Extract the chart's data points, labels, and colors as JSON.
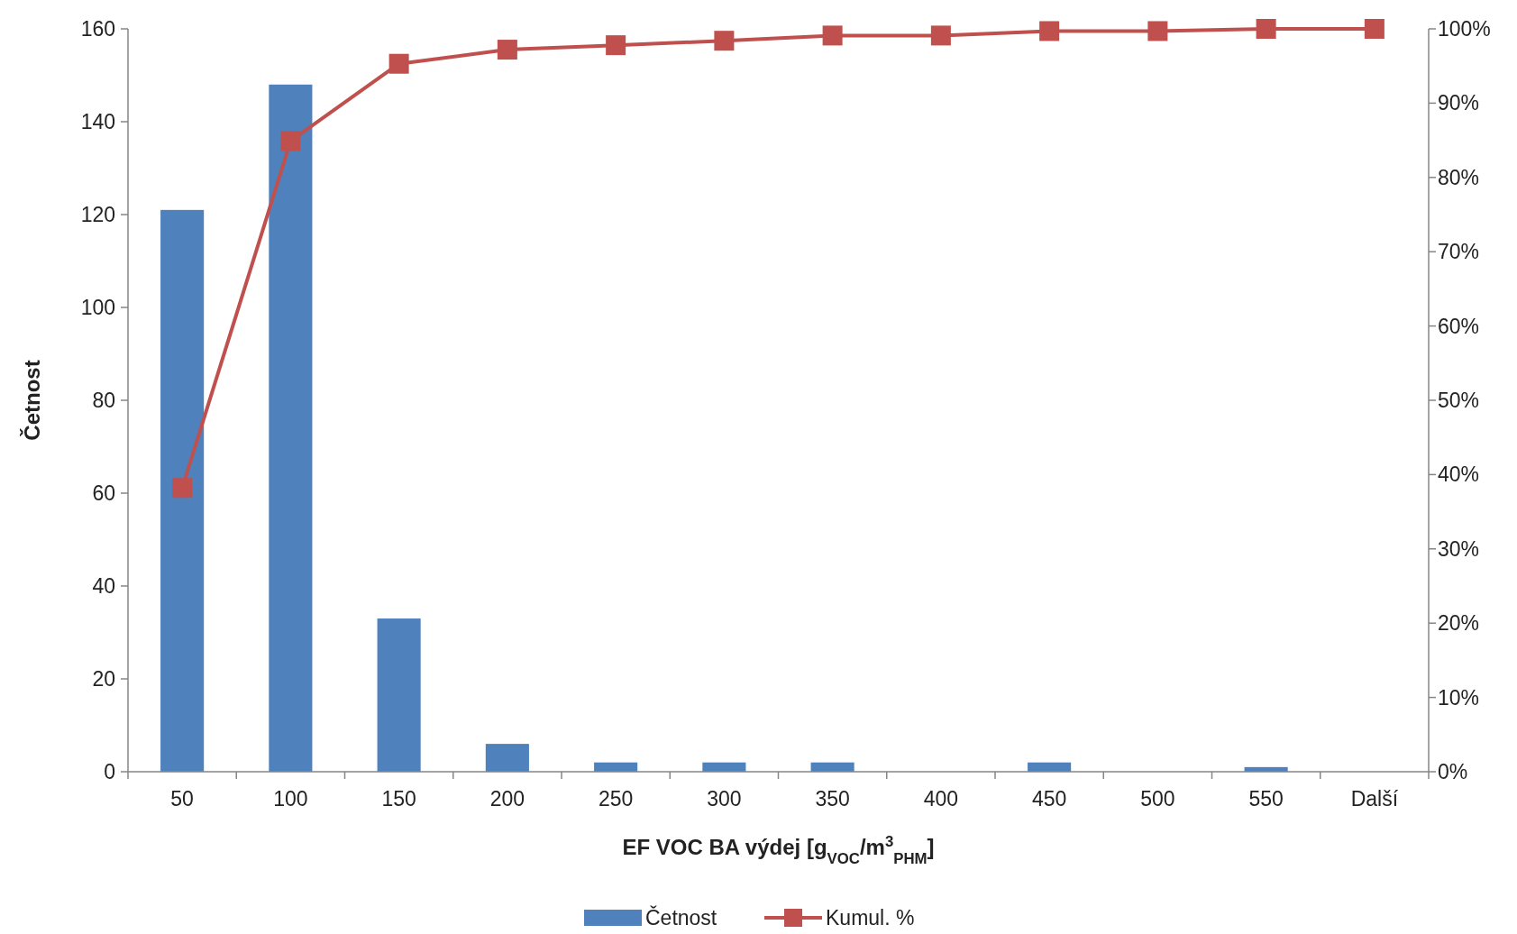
{
  "chart_data": {
    "type": "bar",
    "xlabel": "EF VOC BA výdej [g$_{VOC}$/m$^{3}$$_{PHM}$]",
    "ylabel": "Četnost",
    "categories": [
      "50",
      "100",
      "150",
      "200",
      "250",
      "300",
      "350",
      "400",
      "450",
      "500",
      "550",
      "Další"
    ],
    "series": [
      {
        "name": "Četnost",
        "color": "#4f81bd",
        "values": [
          121,
          148,
          33,
          6,
          2,
          2,
          2,
          0,
          2,
          0,
          1,
          0
        ]
      },
      {
        "name": "Kumul. %",
        "type": "line",
        "axis": "y2",
        "color": "#c0504d",
        "marker": "square",
        "values": [
          38.2,
          84.9,
          95.3,
          97.2,
          97.8,
          98.4,
          99.1,
          99.1,
          99.7,
          99.7,
          100,
          100
        ]
      }
    ],
    "ylim": [
      0,
      160
    ],
    "yticks": [
      0,
      20,
      40,
      60,
      80,
      100,
      120,
      140,
      160
    ],
    "y2lim": [
      0,
      100
    ],
    "y2ticks": [
      {
        "value": 0,
        "label": "0%"
      },
      {
        "value": 10,
        "label": "10%"
      },
      {
        "value": 20,
        "label": "20%"
      },
      {
        "value": 30,
        "label": "30%"
      },
      {
        "value": 40,
        "label": "40%"
      },
      {
        "value": 50,
        "label": "50%"
      },
      {
        "value": 60,
        "label": "60%"
      },
      {
        "value": 70,
        "label": "70%"
      },
      {
        "value": 80,
        "label": "80%"
      },
      {
        "value": 90,
        "label": "90%"
      },
      {
        "value": 100,
        "label": "100%"
      }
    ],
    "grid": false,
    "legend": "bottom"
  }
}
